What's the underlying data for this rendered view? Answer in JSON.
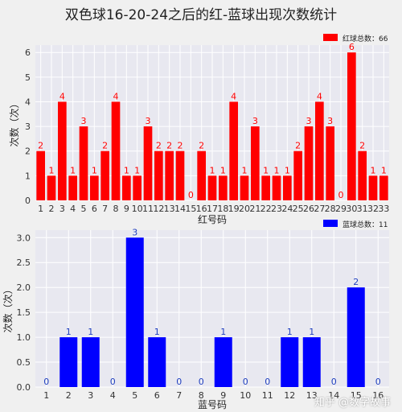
{
  "title": "双色球16-20-24之后的红-蓝球出现次数统计",
  "watermark": "知乎 @数字故事",
  "chart_data": [
    {
      "type": "bar",
      "color": "#ff0000",
      "label_color": "#ff0000",
      "xlabel": "红号码",
      "ylabel": "次数（次）",
      "legend": "红球总数：66",
      "legend_position": "top-right",
      "grid": true,
      "ylim": [
        0,
        6.3
      ],
      "yticks": [
        "0",
        "1",
        "2",
        "3",
        "4",
        "5",
        "6"
      ],
      "categories": [
        "1",
        "2",
        "3",
        "4",
        "5",
        "6",
        "7",
        "8",
        "9",
        "10",
        "11",
        "12",
        "13",
        "14",
        "15",
        "16",
        "17",
        "18",
        "19",
        "20",
        "21",
        "22",
        "23",
        "24",
        "25",
        "26",
        "27",
        "28",
        "29",
        "30",
        "31",
        "32",
        "33"
      ],
      "values": [
        2,
        1,
        4,
        1,
        3,
        1,
        2,
        4,
        1,
        1,
        3,
        2,
        2,
        2,
        0,
        2,
        1,
        1,
        4,
        1,
        3,
        1,
        1,
        1,
        2,
        3,
        4,
        3,
        0,
        6,
        2,
        1,
        1
      ]
    },
    {
      "type": "bar",
      "color": "#0000ff",
      "label_color": "#1f3fbf",
      "xlabel": "蓝号码",
      "ylabel": "次数（次）",
      "legend": "蓝球总数：11",
      "legend_position": "top-right",
      "grid": true,
      "ylim": [
        0,
        3.15
      ],
      "yticks": [
        "0.0",
        "0.5",
        "1.0",
        "1.5",
        "2.0",
        "2.5",
        "3.0"
      ],
      "categories": [
        "1",
        "2",
        "3",
        "4",
        "5",
        "6",
        "7",
        "8",
        "9",
        "10",
        "11",
        "12",
        "13",
        "14",
        "15",
        "16"
      ],
      "values": [
        0,
        1,
        1,
        0,
        3,
        1,
        0,
        0,
        1,
        0,
        0,
        1,
        1,
        0,
        2,
        0
      ]
    }
  ]
}
